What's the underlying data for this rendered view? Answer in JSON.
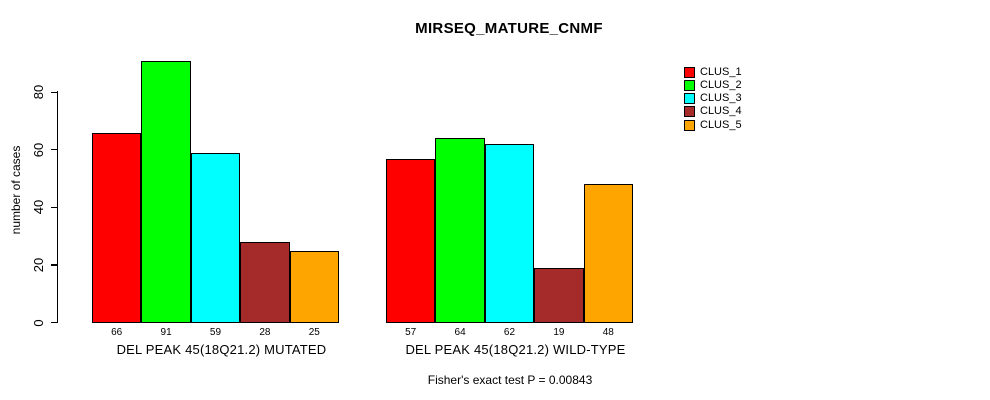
{
  "chart_data": {
    "type": "bar",
    "title": "MIRSEQ_MATURE_CNMF",
    "ylabel": "number of cases",
    "xlabel": "",
    "ylim": [
      0,
      80
    ],
    "yticks": [
      0,
      20,
      40,
      60,
      80
    ],
    "grid": false,
    "legend_position": "right",
    "categories": [
      "DEL PEAK 45(18Q21.2) MUTATED",
      "DEL PEAK 45(18Q21.2) WILD-TYPE"
    ],
    "series": [
      {
        "name": "CLUS_1",
        "color": "#ff0000",
        "values": [
          66,
          57
        ]
      },
      {
        "name": "CLUS_2",
        "color": "#00ff00",
        "values": [
          91,
          64
        ]
      },
      {
        "name": "CLUS_3",
        "color": "#00ffff",
        "values": [
          59,
          62
        ]
      },
      {
        "name": "CLUS_4",
        "color": "#a52a2a",
        "values": [
          28,
          19
        ]
      },
      {
        "name": "CLUS_5",
        "color": "#ffa500",
        "values": [
          25,
          48
        ]
      }
    ],
    "bar_value_labels": true,
    "annotation": "Fisher's exact test P = 0.00843"
  },
  "colors": {
    "axis": "#000000",
    "background": "#ffffff",
    "text": "#000000"
  }
}
